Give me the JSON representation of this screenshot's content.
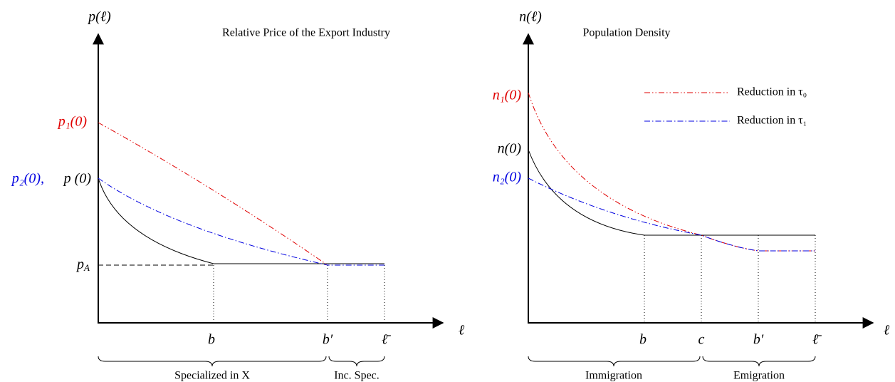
{
  "left": {
    "y_label": "p(ℓ)",
    "title": "Relative Price of the Export Industry",
    "y_labels": {
      "p1": "p₁(0)",
      "p2": "p₂(0),",
      "p0": "p (0)",
      "pA": {
        "base": "p",
        "sub": "A"
      }
    },
    "x_ticks": [
      "b",
      "b′",
      "ℓ̄"
    ],
    "x_label": "ℓ",
    "braces": [
      "Specialized in X",
      "Inc. Spec."
    ]
  },
  "right": {
    "y_label": "n(ℓ)",
    "title": "Population Density",
    "y_labels": {
      "n1": "n₁(0)",
      "n0": "n(0)",
      "n2": "n₂(0)"
    },
    "legend": [
      "Reduction in τ₀",
      "Reduction in τ₁"
    ],
    "x_ticks": [
      "b",
      "c",
      "b′",
      "ℓ̄"
    ],
    "x_label": "ℓ",
    "braces": [
      "Immigration",
      "Emigration"
    ]
  }
}
